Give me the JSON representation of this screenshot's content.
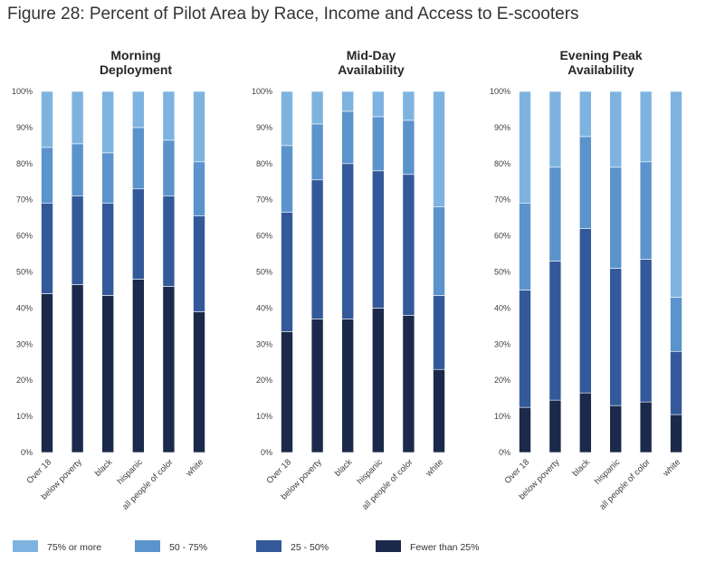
{
  "figure_title": "Figure 28: Percent of Pilot Area by Race, Income and Access to E-scooters",
  "chart_data": {
    "type": "bar",
    "stacked": true,
    "normalized": true,
    "categories": [
      "Over 18",
      "below poverty",
      "black",
      "hispanic",
      "all people of color",
      "white"
    ],
    "y_ticks": [
      "0%",
      "10%",
      "20%",
      "30%",
      "40%",
      "50%",
      "60%",
      "70%",
      "80%",
      "90%",
      "100%"
    ],
    "ylim": [
      0,
      100
    ],
    "grid": false,
    "legend_position": "bottom",
    "series_legend": [
      {
        "name": "75% or more",
        "color": "#7eb3e0"
      },
      {
        "name": "50 - 75%",
        "color": "#5b93cc"
      },
      {
        "name": "25 - 50%",
        "color": "#33599a"
      },
      {
        "name": "Fewer than 25%",
        "color": "#1b2a4a"
      }
    ],
    "panels": [
      {
        "title": [
          "Morning",
          "Deployment"
        ],
        "stacks": [
          {
            "Fewer than 25%": 44,
            "25 - 50%": 25,
            "50 - 75%": 15.5,
            "75% or more": 15.5
          },
          {
            "Fewer than 25%": 46.5,
            "25 - 50%": 24.5,
            "50 - 75%": 14.5,
            "75% or more": 14.5
          },
          {
            "Fewer than 25%": 43.5,
            "25 - 50%": 25.5,
            "50 - 75%": 14,
            "75% or more": 17
          },
          {
            "Fewer than 25%": 48,
            "25 - 50%": 25,
            "50 - 75%": 17,
            "75% or more": 10
          },
          {
            "Fewer than 25%": 46,
            "25 - 50%": 25,
            "50 - 75%": 15.5,
            "75% or more": 13.5
          },
          {
            "Fewer than 25%": 39,
            "25 - 50%": 26.5,
            "50 - 75%": 15,
            "75% or more": 19.5
          }
        ]
      },
      {
        "title": [
          "Mid-Day",
          "Availability"
        ],
        "stacks": [
          {
            "Fewer than 25%": 33.5,
            "25 - 50%": 33,
            "50 - 75%": 18.5,
            "75% or more": 15
          },
          {
            "Fewer than 25%": 37,
            "25 - 50%": 38.5,
            "50 - 75%": 15.5,
            "75% or more": 9
          },
          {
            "Fewer than 25%": 37,
            "25 - 50%": 43,
            "50 - 75%": 14.5,
            "75% or more": 5.5
          },
          {
            "Fewer than 25%": 40,
            "25 - 50%": 38,
            "50 - 75%": 15,
            "75% or more": 7
          },
          {
            "Fewer than 25%": 38,
            "25 - 50%": 39,
            "50 - 75%": 15,
            "75% or more": 8
          },
          {
            "Fewer than 25%": 23,
            "25 - 50%": 20.5,
            "50 - 75%": 24.5,
            "75% or more": 32
          }
        ]
      },
      {
        "title": [
          "Evening Peak",
          "Availability"
        ],
        "stacks": [
          {
            "Fewer than 25%": 12.5,
            "25 - 50%": 32.5,
            "50 - 75%": 24,
            "75% or more": 31
          },
          {
            "Fewer than 25%": 14.5,
            "25 - 50%": 38.5,
            "50 - 75%": 26,
            "75% or more": 21
          },
          {
            "Fewer than 25%": 16.5,
            "25 - 50%": 45.5,
            "50 - 75%": 25.5,
            "75% or more": 12.5
          },
          {
            "Fewer than 25%": 13,
            "25 - 50%": 38,
            "50 - 75%": 28,
            "75% or more": 21
          },
          {
            "Fewer than 25%": 14,
            "25 - 50%": 39.5,
            "50 - 75%": 27,
            "75% or more": 19.5
          },
          {
            "Fewer than 25%": 10.5,
            "25 - 50%": 17.5,
            "50 - 75%": 15,
            "75% or more": 57
          }
        ]
      }
    ]
  }
}
